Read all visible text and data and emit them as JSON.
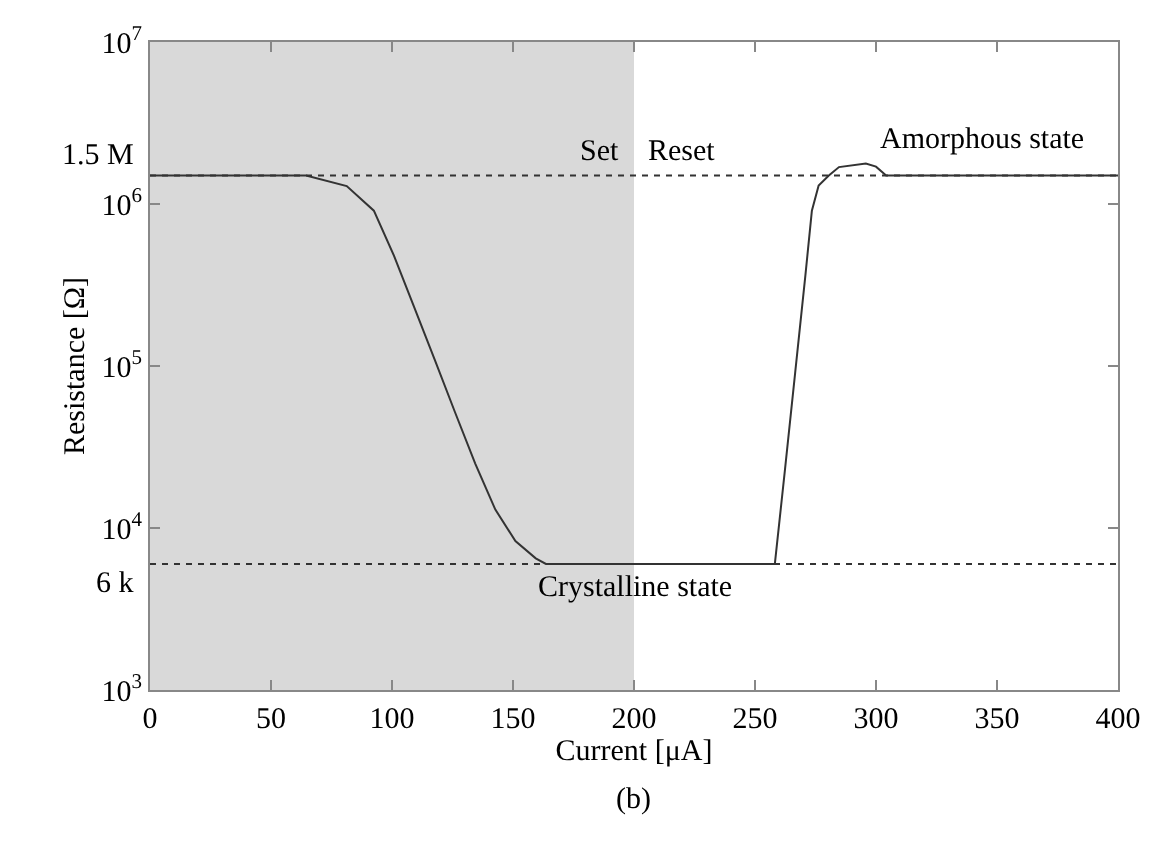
{
  "chart_data": {
    "type": "line",
    "xlabel": "Current [μA]",
    "ylabel": "Resistance [Ω]",
    "log": "y",
    "xlim": [
      0,
      400
    ],
    "xticks": [
      0,
      50,
      100,
      150,
      200,
      250,
      300,
      350,
      400
    ],
    "ylim": [
      1000,
      10000000
    ],
    "yticks": [
      {
        "value": 1000,
        "label": "10$^{3}$"
      },
      {
        "value": 10000,
        "label": "10$^{4}$"
      },
      {
        "value": 100000,
        "label": "10$^{5}$"
      },
      {
        "value": 1000000,
        "label": "10$^{6}$"
      },
      {
        "value": 10000000,
        "label": "10$^{7}$"
      }
    ],
    "grid": false,
    "marker": "none",
    "line_style": "solid",
    "series": [
      {
        "color": "#333333",
        "x": [
          0,
          56,
          64.5,
          81.3,
          92.5,
          100.8,
          109.2,
          117.6,
          126,
          134.4,
          142.7,
          151,
          159.4,
          163.6,
          200,
          258.2,
          262.4,
          266.6,
          270.8,
          273.5,
          276.3,
          280.5,
          284.7,
          295.8,
          300,
          304.2,
          400
        ],
        "values": [
          1500000,
          1500000,
          1500000,
          1290000,
          910000,
          480000,
          230000,
          110000,
          52000,
          25000,
          13000,
          8300,
          6500,
          6000,
          6000,
          6000,
          23000,
          91000,
          360000,
          910000,
          1300000,
          1500000,
          1690000,
          1780000,
          1700000,
          1500000,
          1500000
        ]
      }
    ],
    "ref_lines": [
      {
        "axis": "y",
        "value": 1500000,
        "label": "1.5 M",
        "color": "#333333",
        "line_style": "dotted"
      },
      {
        "axis": "y",
        "value": 6000,
        "label": "6 k",
        "color": "#333333",
        "line_style": "dotted"
      }
    ],
    "bands": [
      {
        "axis": "x",
        "from": 0,
        "to": 200,
        "color": "#d9d9d9"
      }
    ],
    "annotations": [
      "Set",
      "Reset",
      "Amorphous state",
      {
        "text": "Crystalline state",
        "x": 200,
        "y": 4300
      },
      "(b)"
    ]
  }
}
